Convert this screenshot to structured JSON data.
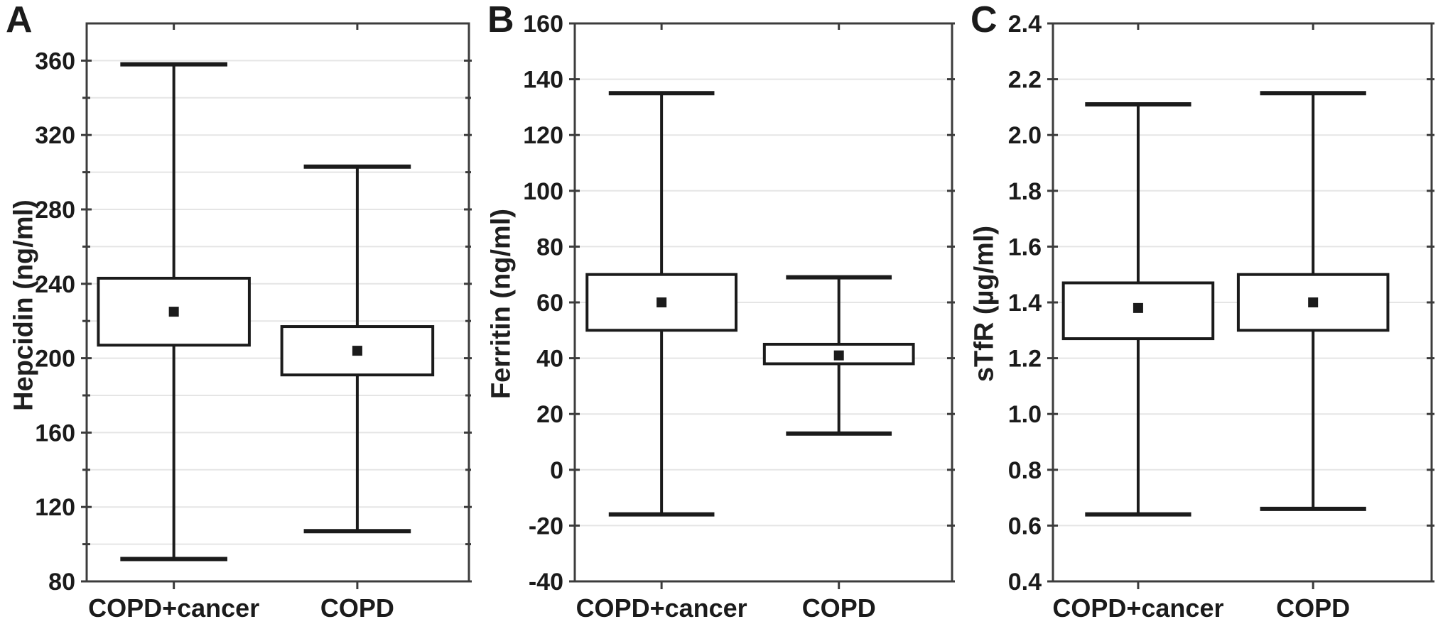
{
  "figure": {
    "description": "Three-panel box plot figure comparing serum iron parameters between COPD+cancer and COPD groups",
    "background_color": "#ffffff",
    "ink_color": "#1b1b1b",
    "grid_color": "#e5e5e5",
    "border_color": "#3c3c3c",
    "marker": "mean-square"
  },
  "chart_data": [
    {
      "type": "box",
      "panel_label": "A",
      "title": "",
      "xlabel": "",
      "ylabel": "Hepcidin (ng/ml)",
      "categories": [
        "COPD+cancer",
        "COPD"
      ],
      "ylim": [
        80,
        380
      ],
      "yticks": [
        80,
        120,
        160,
        200,
        240,
        280,
        320,
        360
      ],
      "ytick_labels": [
        "80",
        "120",
        "160",
        "200",
        "240",
        "280",
        "320",
        "360"
      ],
      "grid_step": 20,
      "grid": true,
      "legend": "none",
      "series": [
        {
          "category": "COPD+cancer",
          "mean": 225,
          "box_low": 207,
          "box_high": 243,
          "whisker_low": 92,
          "whisker_high": 358
        },
        {
          "category": "COPD",
          "mean": 204,
          "box_low": 191,
          "box_high": 217,
          "whisker_low": 107,
          "whisker_high": 303
        }
      ]
    },
    {
      "type": "box",
      "panel_label": "B",
      "title": "",
      "xlabel": "",
      "ylabel": "Ferritin (ng/ml)",
      "categories": [
        "COPD+cancer",
        "COPD"
      ],
      "ylim": [
        -40,
        160
      ],
      "yticks": [
        -40,
        -20,
        0,
        20,
        40,
        60,
        80,
        100,
        120,
        140,
        160
      ],
      "ytick_labels": [
        "-40",
        "-20",
        "0",
        "20",
        "40",
        "60",
        "80",
        "100",
        "120",
        "140",
        "160"
      ],
      "grid_step": 20,
      "grid": true,
      "legend": "none",
      "series": [
        {
          "category": "COPD+cancer",
          "mean": 60,
          "box_low": 50,
          "box_high": 70,
          "whisker_low": -16,
          "whisker_high": 135
        },
        {
          "category": "COPD",
          "mean": 41,
          "box_low": 38,
          "box_high": 45,
          "whisker_low": 13,
          "whisker_high": 69
        }
      ]
    },
    {
      "type": "box",
      "panel_label": "C",
      "title": "",
      "xlabel": "",
      "ylabel": "sTfR (µg/ml)",
      "categories": [
        "COPD+cancer",
        "COPD"
      ],
      "ylim": [
        0.4,
        2.4
      ],
      "yticks": [
        0.4,
        0.6,
        0.8,
        1.0,
        1.2,
        1.4,
        1.6,
        1.8,
        2.0,
        2.2,
        2.4
      ],
      "ytick_labels": [
        "0.4",
        "0.6",
        "0.8",
        "1.0",
        "1.2",
        "1.4",
        "1.6",
        "1.8",
        "2.0",
        "2.2",
        "2.4"
      ],
      "grid_step": 0.2,
      "grid": true,
      "legend": "none",
      "series": [
        {
          "category": "COPD+cancer",
          "mean": 1.38,
          "box_low": 1.27,
          "box_high": 1.47,
          "whisker_low": 0.64,
          "whisker_high": 2.11
        },
        {
          "category": "COPD",
          "mean": 1.4,
          "box_low": 1.3,
          "box_high": 1.5,
          "whisker_low": 0.66,
          "whisker_high": 2.15
        }
      ]
    }
  ]
}
